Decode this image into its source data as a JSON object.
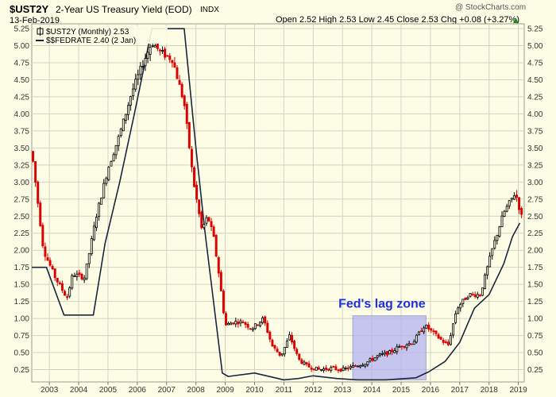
{
  "header": {
    "symbol": "$UST2Y",
    "title": "2-Year US Treasury Yield (EOD)",
    "exchange": "INDX",
    "date": "13-Feb-2019",
    "ohlc": "Open 2.52  High 2.53  Low 2.45  Close 2.53  Chg +0.08 (+3.27%)",
    "watermark": "@ StockCharts.com",
    "up_arrow": "▲"
  },
  "legend": {
    "series1": "$UST2Y (Monthly) 2.53",
    "series2": "$$FEDRATE 2.40 (2 Jan)"
  },
  "annotation": {
    "text": "Fed's lag zone"
  },
  "colors": {
    "background": "#fdfde6",
    "grid": "#d2d2c2",
    "up": "#000000",
    "down": "#dd0000",
    "fedrate": "#1a2640",
    "zone_fill": "#b3b3f0",
    "annotation": "#1f2fdc",
    "axis_text": "#333333"
  },
  "chart_data": {
    "type": "line",
    "title": "2-Year US Treasury Yield (EOD)",
    "xlabel": "",
    "ylabel": "",
    "ylim": [
      0.07,
      5.32
    ],
    "xlim": [
      2002.4,
      2019.2
    ],
    "yticks": [
      0.25,
      0.5,
      0.75,
      1.0,
      1.25,
      1.5,
      1.75,
      2.0,
      2.25,
      2.5,
      2.75,
      3.0,
      3.25,
      3.5,
      3.75,
      4.0,
      4.25,
      4.5,
      4.75,
      5.0,
      5.25
    ],
    "ytick_labels": [
      "0.25",
      "0.50",
      "0.75",
      "1.00",
      "1.25",
      "1.50",
      "1.75",
      "2.00",
      "2.25",
      "2.50",
      "2.75",
      "3.00",
      "3.25",
      "3.50",
      "3.75",
      "4.00",
      "4.25",
      "4.50",
      "4.75",
      "5.00",
      "5.25"
    ],
    "xticks": [
      2003,
      2004,
      2005,
      2006,
      2007,
      2008,
      2009,
      2010,
      2011,
      2012,
      2013,
      2014,
      2015,
      2016,
      2017,
      2018,
      2019
    ],
    "xtick_labels": [
      "2003",
      "2004",
      "2005",
      "2006",
      "2007",
      "2008",
      "2009",
      "2010",
      "2011",
      "2012",
      "2013",
      "2014",
      "2015",
      "2016",
      "2017",
      "2018",
      "2019"
    ],
    "grid": true,
    "legend_position": "top-left",
    "series": [
      {
        "name": "$UST2Y (Monthly) 2.53",
        "kind": "candles",
        "x": [
          2002.4,
          2002.8,
          2003.2,
          2003.6,
          2003.8,
          2004.2,
          2004.6,
          2005.0,
          2005.4,
          2005.8,
          2006.2,
          2006.5,
          2006.8,
          2007.2,
          2007.6,
          2007.9,
          2008.2,
          2008.4,
          2008.6,
          2008.8,
          2009.0,
          2009.3,
          2009.6,
          2009.9,
          2010.3,
          2010.6,
          2010.9,
          2011.2,
          2011.5,
          2011.8,
          2012.2,
          2012.6,
          2013.0,
          2013.4,
          2013.8,
          2014.2,
          2014.6,
          2015.0,
          2015.4,
          2015.8,
          2016.2,
          2016.6,
          2016.9,
          2017.3,
          2017.7,
          2018.1,
          2018.5,
          2018.9,
          2019.1
        ],
        "values": [
          3.45,
          2.0,
          1.6,
          1.3,
          1.65,
          1.6,
          2.5,
          3.2,
          3.7,
          4.3,
          4.75,
          5.05,
          4.9,
          4.8,
          4.15,
          3.05,
          2.3,
          2.5,
          2.2,
          1.6,
          0.9,
          0.95,
          0.95,
          0.85,
          1.0,
          0.6,
          0.45,
          0.75,
          0.4,
          0.3,
          0.25,
          0.27,
          0.25,
          0.3,
          0.35,
          0.45,
          0.5,
          0.6,
          0.65,
          0.9,
          0.75,
          0.6,
          1.15,
          1.35,
          1.35,
          2.0,
          2.55,
          2.85,
          2.5
        ]
      },
      {
        "name": "$$FEDRATE 2.40 (2 Jan)",
        "kind": "line",
        "x": [
          2002.4,
          2002.9,
          2003.5,
          2004.5,
          2004.9,
          2005.4,
          2005.9,
          2006.5,
          2007.6,
          2008.0,
          2008.3,
          2008.9,
          2009.1,
          2010.0,
          2011.0,
          2011.5,
          2012.0,
          2012.8,
          2013.5,
          2014.5,
          2015.5,
          2015.95,
          2016.5,
          2017.0,
          2017.5,
          2018.0,
          2018.5,
          2018.8,
          2019.05
        ],
        "values": [
          1.75,
          1.75,
          1.05,
          1.05,
          2.1,
          3.0,
          4.0,
          5.25,
          5.25,
          3.5,
          2.3,
          0.2,
          0.15,
          0.2,
          0.1,
          0.12,
          0.16,
          0.12,
          0.1,
          0.1,
          0.13,
          0.22,
          0.37,
          0.65,
          1.15,
          1.35,
          1.8,
          2.2,
          2.4
        ]
      }
    ],
    "annotations": [
      {
        "text": "Fed's lag zone",
        "x_range": [
          2013.35,
          2015.85
        ],
        "y_range": [
          0.1,
          1.04
        ]
      }
    ]
  }
}
